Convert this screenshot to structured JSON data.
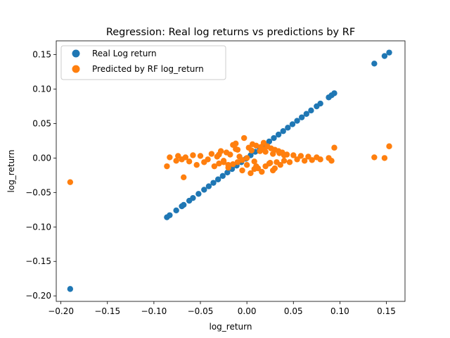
{
  "chart_data": {
    "type": "scatter",
    "title": "Regression: Real log returns vs predictions by RF",
    "xlabel": "log_return",
    "ylabel": "log_return",
    "xlim": [
      -0.205,
      0.17
    ],
    "ylim": [
      -0.208,
      0.17
    ],
    "xticks": [
      -0.2,
      -0.15,
      -0.1,
      -0.05,
      0.0,
      0.05,
      0.1,
      0.15
    ],
    "xtick_labels": [
      "−0.20",
      "−0.15",
      "−0.10",
      "−0.05",
      "0.00",
      "0.05",
      "0.10",
      "0.15"
    ],
    "yticks": [
      -0.2,
      -0.15,
      -0.1,
      -0.05,
      0.0,
      0.05,
      0.1,
      0.15
    ],
    "ytick_labels": [
      "−0.20",
      "−0.15",
      "−0.10",
      "−0.05",
      "0.00",
      "0.05",
      "0.10",
      "0.15"
    ],
    "grid": false,
    "legend_position": "top-left",
    "series": [
      {
        "name": "Real Log return",
        "color": "#1f77b4",
        "x": [
          -0.19,
          -0.086,
          -0.083,
          -0.076,
          -0.07,
          -0.068,
          -0.062,
          -0.058,
          -0.052,
          -0.046,
          -0.041,
          -0.036,
          -0.031,
          -0.026,
          -0.021,
          -0.016,
          -0.011,
          -0.006,
          -0.001,
          0.004,
          0.009,
          0.014,
          0.019,
          0.024,
          0.029,
          0.034,
          0.039,
          0.044,
          0.049,
          0.054,
          0.059,
          0.064,
          0.069,
          0.075,
          0.079,
          0.088,
          0.091,
          0.094,
          0.137,
          0.148,
          0.153
        ],
        "y": [
          -0.19,
          -0.086,
          -0.083,
          -0.076,
          -0.07,
          -0.068,
          -0.062,
          -0.058,
          -0.052,
          -0.046,
          -0.041,
          -0.036,
          -0.031,
          -0.026,
          -0.021,
          -0.016,
          -0.011,
          -0.006,
          -0.001,
          0.004,
          0.009,
          0.014,
          0.019,
          0.024,
          0.029,
          0.034,
          0.039,
          0.044,
          0.049,
          0.054,
          0.059,
          0.064,
          0.069,
          0.075,
          0.079,
          0.088,
          0.091,
          0.094,
          0.137,
          0.148,
          0.153
        ]
      },
      {
        "name": "Predicted by RF log_return",
        "color": "#ff7f0e",
        "x": [
          -0.19,
          -0.086,
          -0.083,
          -0.076,
          -0.074,
          -0.07,
          -0.068,
          -0.066,
          -0.062,
          -0.058,
          -0.054,
          -0.05,
          -0.046,
          -0.042,
          -0.038,
          -0.035,
          -0.032,
          -0.03,
          -0.028,
          -0.025,
          -0.022,
          -0.02,
          -0.018,
          -0.015,
          -0.012,
          -0.01,
          -0.008,
          -0.005,
          -0.003,
          0.0,
          0.002,
          0.004,
          0.006,
          0.008,
          0.01,
          0.012,
          0.014,
          0.016,
          0.018,
          0.02,
          0.022,
          0.024,
          0.026,
          0.028,
          0.03,
          0.032,
          0.034,
          0.036,
          0.038,
          0.04,
          0.043,
          0.046,
          0.05,
          0.054,
          0.058,
          0.062,
          0.066,
          0.07,
          0.075,
          0.079,
          0.088,
          0.091,
          0.094,
          0.137,
          0.148,
          0.153,
          -0.03,
          -0.02,
          -0.01,
          0.0,
          0.01,
          0.02,
          0.03,
          0.04,
          -0.025,
          -0.015,
          -0.005,
          0.005,
          0.015,
          0.025,
          0.035,
          -0.012,
          0.008,
          0.018,
          0.028
        ],
        "y": [
          -0.035,
          -0.012,
          0.001,
          -0.004,
          0.003,
          -0.002,
          -0.028,
          0.001,
          -0.005,
          0.004,
          -0.01,
          0.003,
          -0.006,
          -0.002,
          0.006,
          -0.012,
          0.002,
          -0.008,
          0.01,
          -0.004,
          0.008,
          -0.014,
          0.005,
          -0.009,
          0.013,
          -0.006,
          0.002,
          -0.018,
          0.029,
          -0.01,
          0.015,
          -0.022,
          0.02,
          -0.005,
          0.018,
          -0.015,
          0.01,
          -0.02,
          0.022,
          -0.012,
          0.017,
          -0.008,
          0.014,
          -0.018,
          0.012,
          -0.006,
          0.01,
          -0.01,
          0.008,
          -0.004,
          0.005,
          -0.006,
          0.004,
          -0.002,
          0.003,
          -0.004,
          0.002,
          -0.003,
          0.001,
          -0.002,
          0.0,
          -0.004,
          0.015,
          0.001,
          0.0,
          0.017,
          0.005,
          -0.01,
          0.012,
          0.0,
          -0.012,
          0.009,
          -0.015,
          0.004,
          -0.006,
          0.019,
          -0.003,
          0.011,
          0.016,
          -0.007,
          0.007,
          0.021,
          -0.016,
          0.013,
          0.006
        ]
      }
    ]
  }
}
